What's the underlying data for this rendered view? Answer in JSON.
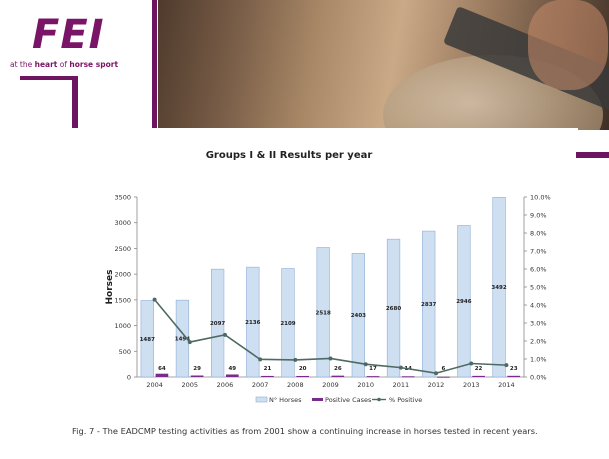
{
  "logo": {
    "mark": "FEI",
    "tagline_pre": "at the ",
    "tagline_b1": "heart",
    "tagline_mid": " of ",
    "tagline_b2": "horse sport"
  },
  "colors": {
    "accent": "#6e1562",
    "bar": "#cfdff2",
    "bar_border": "#8eaed6",
    "positive": "#7a2a8a",
    "line": "#4e6b63"
  },
  "chart_data": {
    "type": "bar",
    "title": "Groups I & II Results per year",
    "ylabel": "Horses",
    "ylim": [
      0,
      3500
    ],
    "y_ticks": [
      0,
      500,
      1000,
      1500,
      2000,
      2500,
      3000,
      3500
    ],
    "y2lim": [
      0,
      10
    ],
    "y2_ticks": [
      "0.0%",
      "1.0%",
      "2.0%",
      "3.0%",
      "4.0%",
      "5.0%",
      "6.0%",
      "7.0%",
      "8.0%",
      "9.0%",
      "10.0%"
    ],
    "categories": [
      "2004",
      "2005",
      "2006",
      "2007",
      "2008",
      "2009",
      "2010",
      "2011",
      "2012",
      "2013",
      "2014"
    ],
    "series": [
      {
        "name": "N° Horses",
        "axis": "left",
        "values": [
          1487,
          1494,
          2097,
          2136,
          2109,
          2518,
          2403,
          2680,
          2837,
          2946,
          3492
        ]
      },
      {
        "name": "Positive Cases",
        "axis": "left",
        "values": [
          64,
          29,
          49,
          21,
          20,
          26,
          17,
          14,
          6,
          22,
          23
        ]
      },
      {
        "name": "% Positive",
        "axis": "right",
        "values": [
          4.3,
          1.94,
          2.34,
          0.98,
          0.95,
          1.03,
          0.71,
          0.52,
          0.21,
          0.75,
          0.66
        ]
      }
    ],
    "legend_position": "bottom"
  },
  "caption": "Fig. 7 - The EADCMP testing activities as from 2001 show a continuing increase in horses tested in recent years."
}
